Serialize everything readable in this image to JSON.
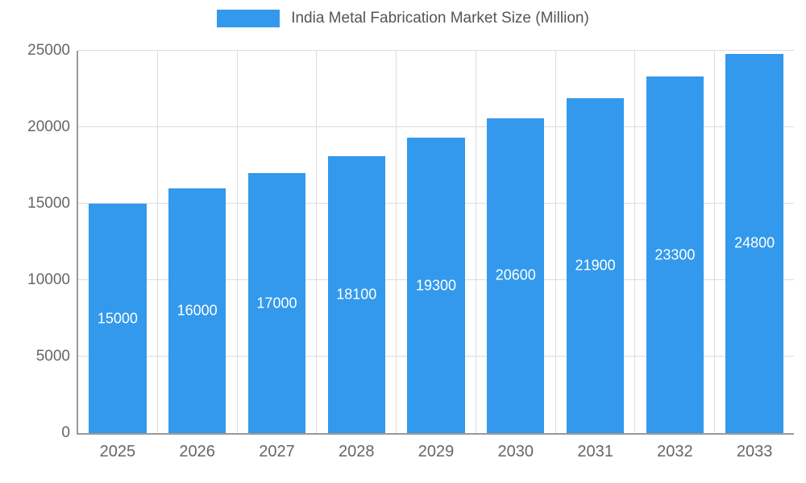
{
  "chart_data": {
    "type": "bar",
    "title": "India Metal Fabrication Market Size (Million)",
    "categories": [
      "2025",
      "2026",
      "2027",
      "2028",
      "2029",
      "2030",
      "2031",
      "2032",
      "2033"
    ],
    "values": [
      15000,
      16000,
      17000,
      18100,
      19300,
      20600,
      21900,
      23300,
      24800
    ],
    "value_labels": [
      "15000",
      "16000",
      "17000",
      "18100",
      "19300",
      "20600",
      "21900",
      "23300",
      "24800"
    ],
    "xlabel": "",
    "ylabel": "",
    "ylim": [
      0,
      25000
    ],
    "yticks": [
      0,
      5000,
      10000,
      15000,
      20000,
      25000
    ],
    "grid": "on",
    "legend_position": "top-center",
    "bar_color": "#3399ec",
    "label_color": "#ffffff",
    "axis_color": "#999999",
    "grid_color": "#dddddd",
    "tick_text_color": "#666666",
    "title_color": "#555555"
  }
}
